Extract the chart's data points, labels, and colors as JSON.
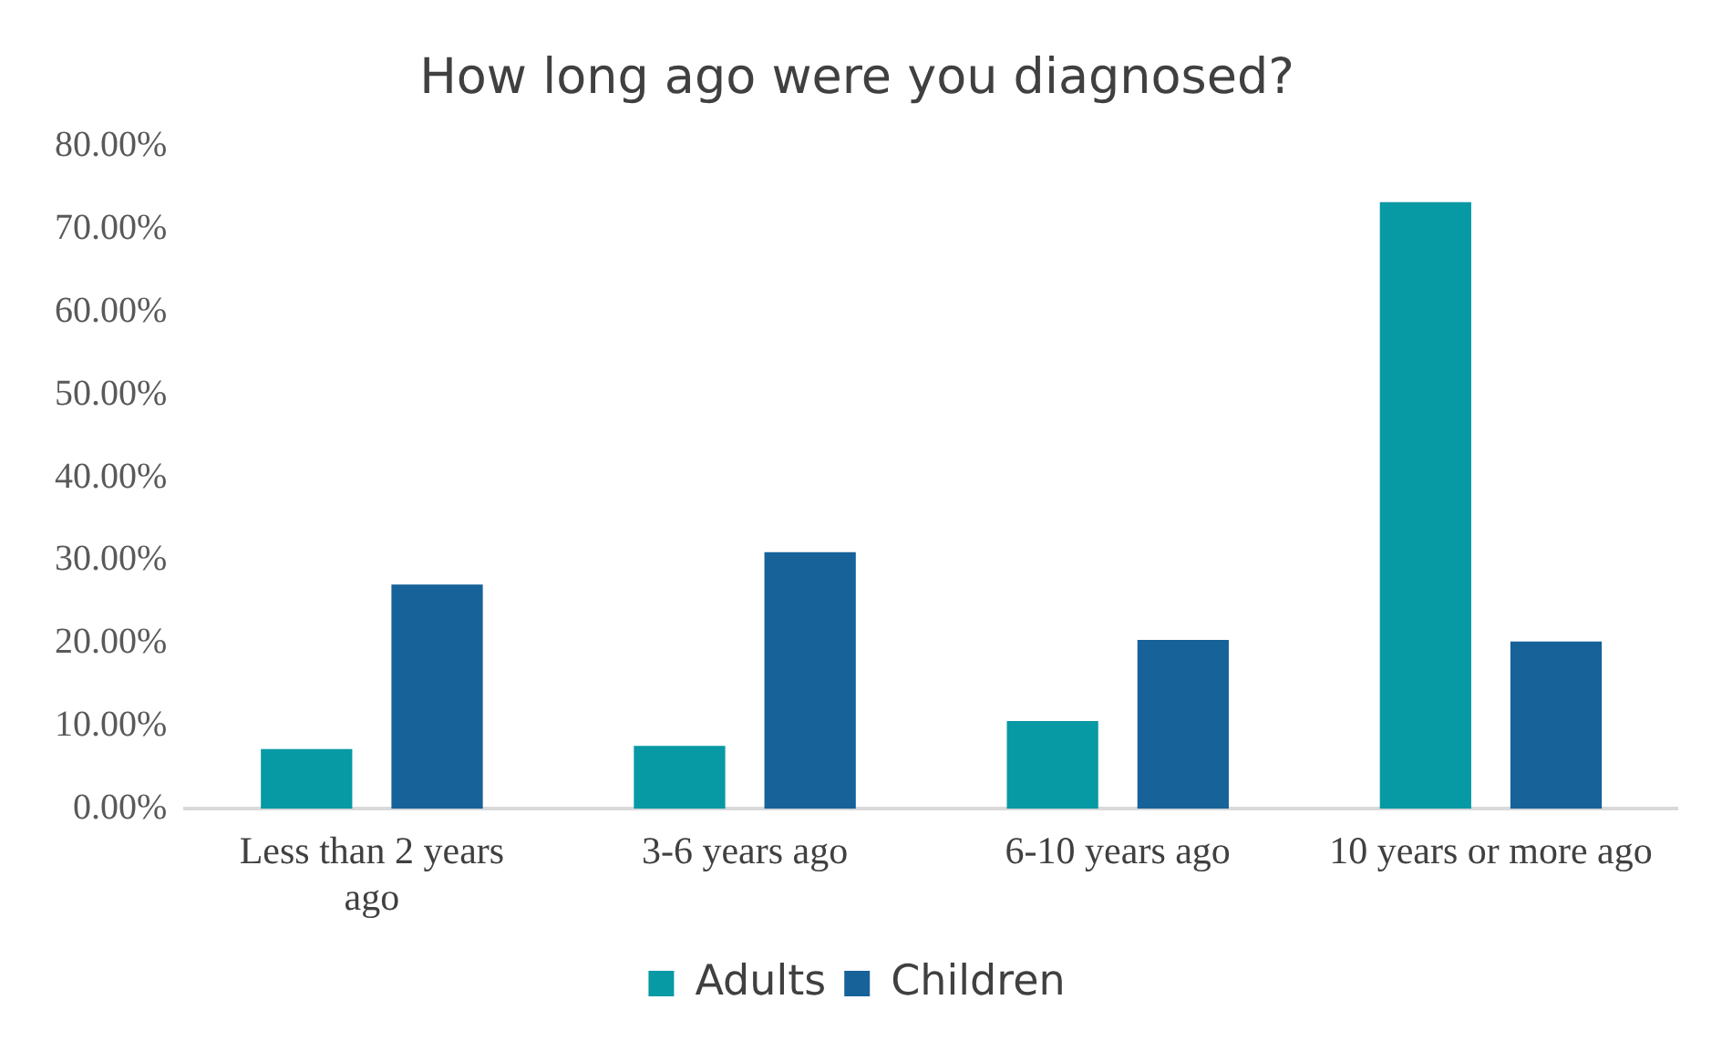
{
  "chart_data": {
    "type": "bar",
    "title": "How long ago were you diagnosed?",
    "categories": [
      "Less than 2 years ago",
      "3-6 years ago",
      "6-10 years ago",
      "10 years or more ago"
    ],
    "series": [
      {
        "name": "Adults",
        "color": "#0799a4",
        "values": [
          7.2,
          7.6,
          10.6,
          73.3
        ]
      },
      {
        "name": "Children",
        "color": "#166299",
        "values": [
          27.1,
          31.0,
          20.4,
          20.2
        ]
      }
    ],
    "ylim": [
      0,
      80
    ],
    "yticks": [
      {
        "value": 0,
        "label": "0.00%"
      },
      {
        "value": 10,
        "label": "10.00%"
      },
      {
        "value": 20,
        "label": "20.00%"
      },
      {
        "value": 30,
        "label": "30.00%"
      },
      {
        "value": 40,
        "label": "40.00%"
      },
      {
        "value": 50,
        "label": "50.00%"
      },
      {
        "value": 60,
        "label": "60.00%"
      },
      {
        "value": 70,
        "label": "70.00%"
      },
      {
        "value": 80,
        "label": "80.00%"
      }
    ],
    "grid": false,
    "legend": "bottom"
  }
}
